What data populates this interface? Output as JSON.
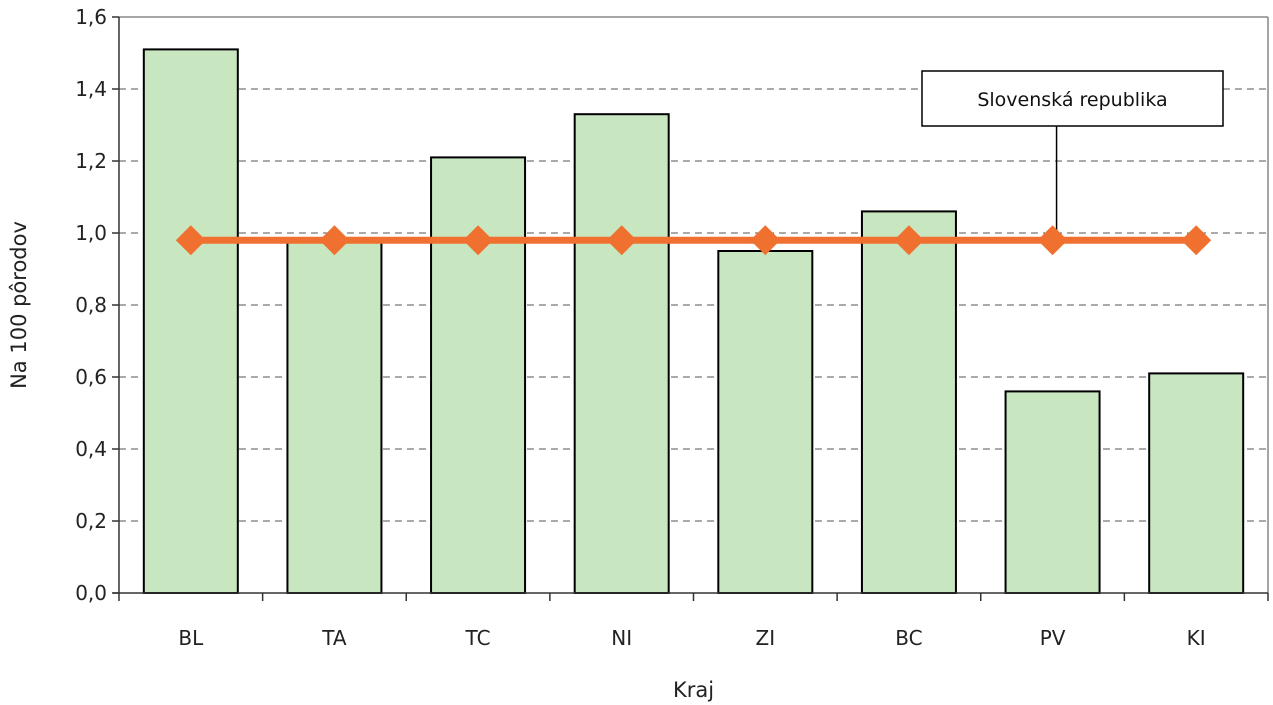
{
  "chart_data": {
    "type": "bar",
    "categories": [
      "BL",
      "TA",
      "TC",
      "NI",
      "ZI",
      "BC",
      "PV",
      "KI"
    ],
    "series": [
      {
        "type": "bar",
        "values": [
          1.51,
          0.98,
          1.21,
          1.33,
          0.95,
          1.06,
          0.56,
          0.61
        ],
        "color": "#c8e6c0"
      },
      {
        "name": "Slovenská republika",
        "type": "line",
        "values": [
          0.98,
          0.98,
          0.98,
          0.98,
          0.98,
          0.98,
          0.98,
          0.98
        ],
        "color": "#f07030",
        "marker": "diamond"
      }
    ],
    "xlabel": "Kraj",
    "ylabel": "Na 100 pôrodov",
    "ylim": [
      0,
      1.6
    ],
    "yticks": [
      "0,0",
      "0,2",
      "0,4",
      "0,6",
      "0,8",
      "1,0",
      "1,2",
      "1,4",
      "1,6"
    ],
    "grid": "horizontal dashed",
    "annotation": "Slovenská republika"
  }
}
